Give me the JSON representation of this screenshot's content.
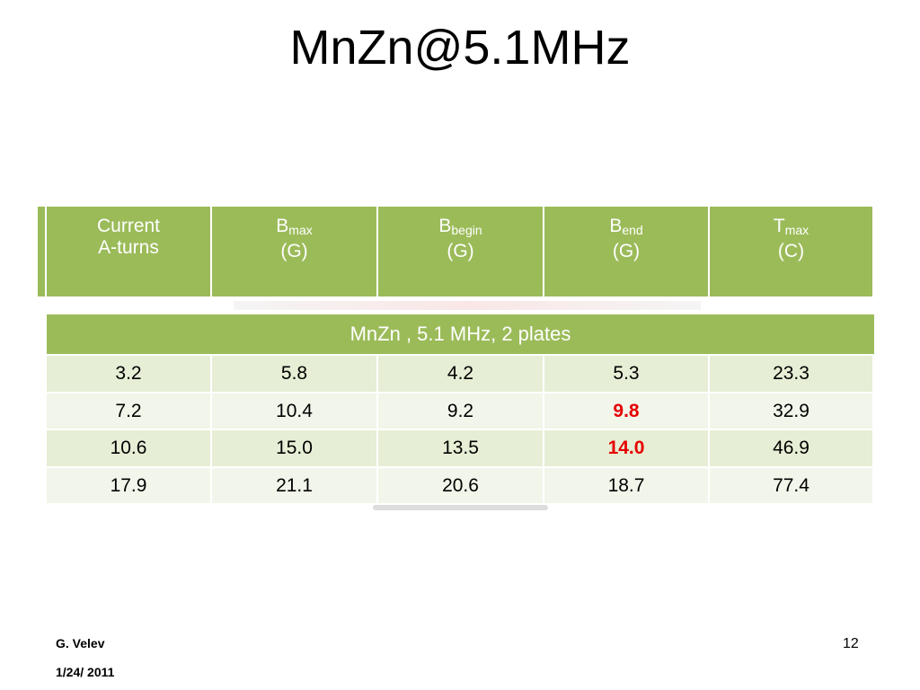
{
  "header": {
    "title": "MnZn@5.1MHz"
  },
  "table": {
    "columns": [
      {
        "line1": "Current",
        "line2": "A-turns"
      },
      {
        "symbol": "B",
        "sub": "max",
        "unit": "(G)"
      },
      {
        "symbol": "B",
        "sub": "begin",
        "unit": "(G)"
      },
      {
        "symbol": "B",
        "sub": "end",
        "unit": "(G)"
      },
      {
        "symbol": "T",
        "sub": "max",
        "unit": "(C)"
      }
    ],
    "section": "MnZn , 5.1 MHz, 2 plates",
    "rows": [
      [
        "3.2",
        "5.8",
        "4.2",
        "5.3",
        "23.3"
      ],
      [
        "7.2",
        "10.4",
        "9.2",
        {
          "text": "9.8",
          "color": "#e60000",
          "bold": true
        },
        "32.9"
      ],
      [
        "10.6",
        "15.0",
        "13.5",
        {
          "text": "14.0",
          "color": "#e60000",
          "bold": true
        },
        "46.9"
      ],
      [
        "17.9",
        "21.1",
        "20.6",
        "18.7",
        "77.4"
      ]
    ]
  },
  "footer": {
    "author": "G. Velev",
    "date": "1/24/ 2011",
    "page": "12"
  }
}
